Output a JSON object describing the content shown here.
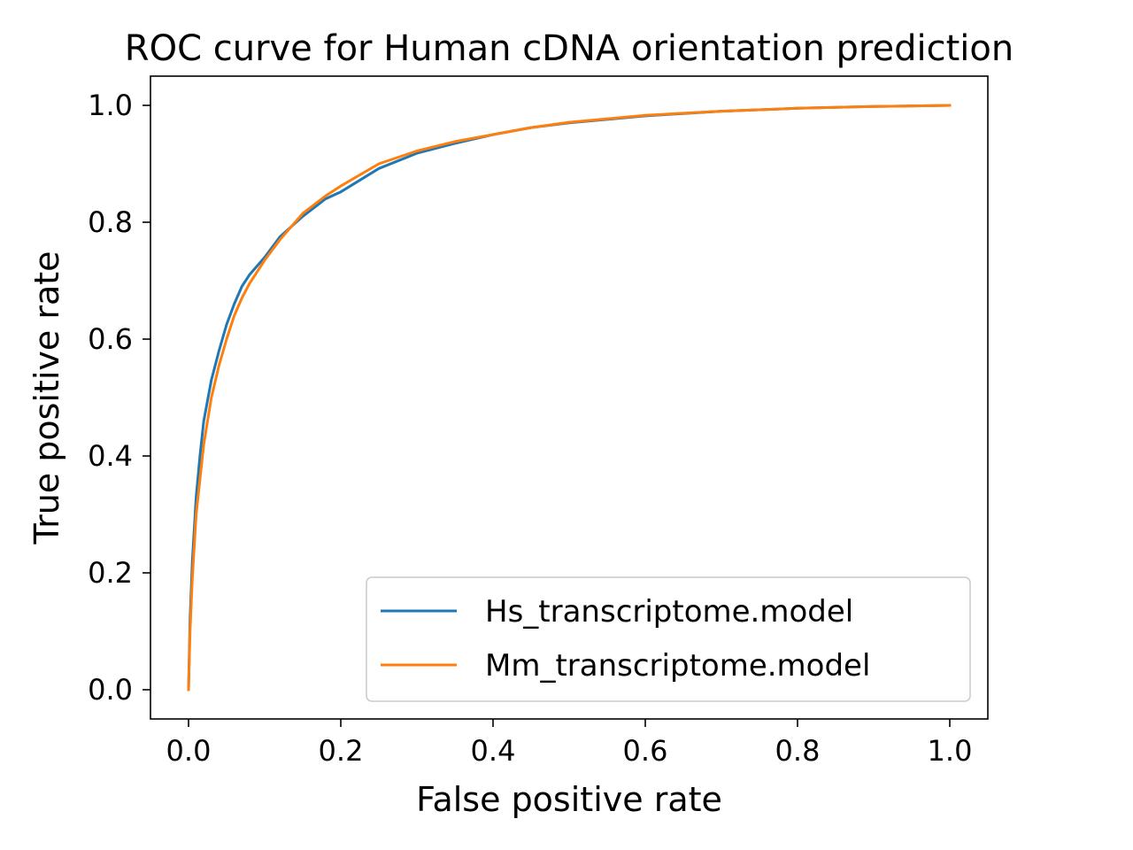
{
  "chart_data": {
    "type": "line",
    "title": "ROC curve for Human cDNA orientation prediction",
    "xlabel": "False positive rate",
    "ylabel": "True positive rate",
    "xlim": [
      -0.05,
      1.05
    ],
    "ylim": [
      -0.05,
      1.05
    ],
    "xticks": [
      0.0,
      0.2,
      0.4,
      0.6,
      0.8,
      1.0
    ],
    "xtick_labels": [
      "0.0",
      "0.2",
      "0.4",
      "0.6",
      "0.8",
      "1.0"
    ],
    "yticks": [
      0.0,
      0.2,
      0.4,
      0.6,
      0.8,
      1.0
    ],
    "ytick_labels": [
      "0.0",
      "0.2",
      "0.4",
      "0.6",
      "0.8",
      "1.0"
    ],
    "grid": false,
    "legend_position": "lower-right",
    "series": [
      {
        "name": "Hs_transcriptome.model",
        "color": "#1f77b4",
        "x": [
          0.0,
          0.002,
          0.005,
          0.01,
          0.015,
          0.02,
          0.03,
          0.04,
          0.05,
          0.06,
          0.07,
          0.08,
          0.1,
          0.12,
          0.15,
          0.18,
          0.2,
          0.25,
          0.3,
          0.35,
          0.4,
          0.45,
          0.5,
          0.6,
          0.7,
          0.8,
          0.9,
          1.0
        ],
        "y": [
          0.0,
          0.12,
          0.22,
          0.33,
          0.4,
          0.46,
          0.53,
          0.58,
          0.625,
          0.66,
          0.69,
          0.71,
          0.74,
          0.775,
          0.81,
          0.84,
          0.852,
          0.892,
          0.918,
          0.935,
          0.95,
          0.962,
          0.97,
          0.982,
          0.99,
          0.995,
          0.998,
          1.0
        ]
      },
      {
        "name": "Mm_transcriptome.model",
        "color": "#ff7f0e",
        "x": [
          0.0,
          0.002,
          0.005,
          0.01,
          0.015,
          0.02,
          0.03,
          0.04,
          0.05,
          0.06,
          0.07,
          0.08,
          0.1,
          0.12,
          0.15,
          0.18,
          0.2,
          0.25,
          0.3,
          0.35,
          0.4,
          0.45,
          0.5,
          0.6,
          0.7,
          0.8,
          0.9,
          1.0
        ],
        "y": [
          0.0,
          0.1,
          0.19,
          0.3,
          0.36,
          0.42,
          0.5,
          0.555,
          0.6,
          0.64,
          0.67,
          0.695,
          0.735,
          0.77,
          0.815,
          0.845,
          0.862,
          0.9,
          0.922,
          0.938,
          0.95,
          0.962,
          0.971,
          0.983,
          0.99,
          0.995,
          0.998,
          1.0
        ]
      }
    ]
  }
}
